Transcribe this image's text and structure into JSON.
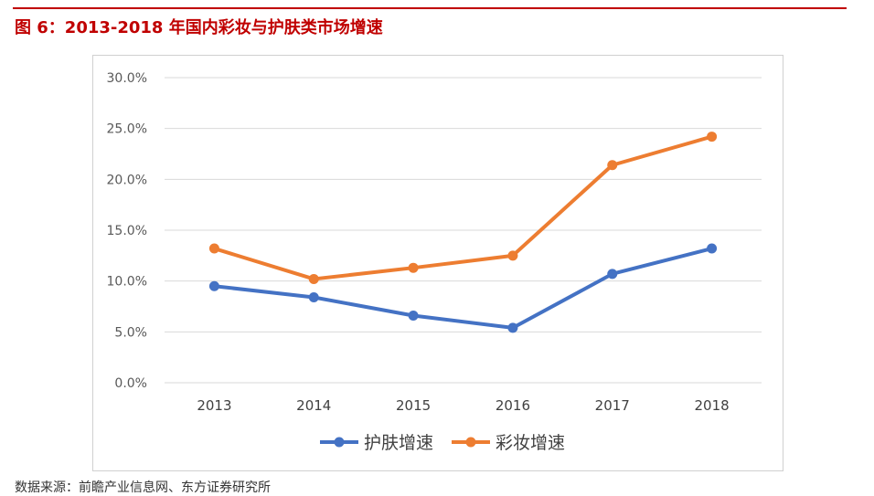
{
  "figure": {
    "title": "图 6：2013-2018 年国内彩妆与护肤类市场增速",
    "source": "数据来源：前瞻产业信息网、东方证券研究所"
  },
  "colors": {
    "accent": "#c00000",
    "series_skincare": "#4472c4",
    "series_makeup": "#ed7d31",
    "grid": "#d9d9d9",
    "tick_text": "#595959"
  },
  "chart_data": {
    "type": "line",
    "title": "",
    "xlabel": "",
    "ylabel": "",
    "categories": [
      "2013",
      "2014",
      "2015",
      "2016",
      "2017",
      "2018"
    ],
    "ylim": [
      0,
      30
    ],
    "yticks": [
      0,
      5,
      10,
      15,
      20,
      25,
      30
    ],
    "ytick_labels": [
      "0.0%",
      "5.0%",
      "10.0%",
      "15.0%",
      "20.0%",
      "25.0%",
      "30.0%"
    ],
    "grid": true,
    "legend_position": "bottom",
    "series": [
      {
        "name": "护肤增速",
        "values": [
          9.5,
          8.4,
          6.6,
          5.4,
          10.7,
          13.2
        ]
      },
      {
        "name": "彩妆增速",
        "values": [
          13.2,
          10.2,
          11.3,
          12.5,
          21.4,
          24.2
        ]
      }
    ]
  }
}
